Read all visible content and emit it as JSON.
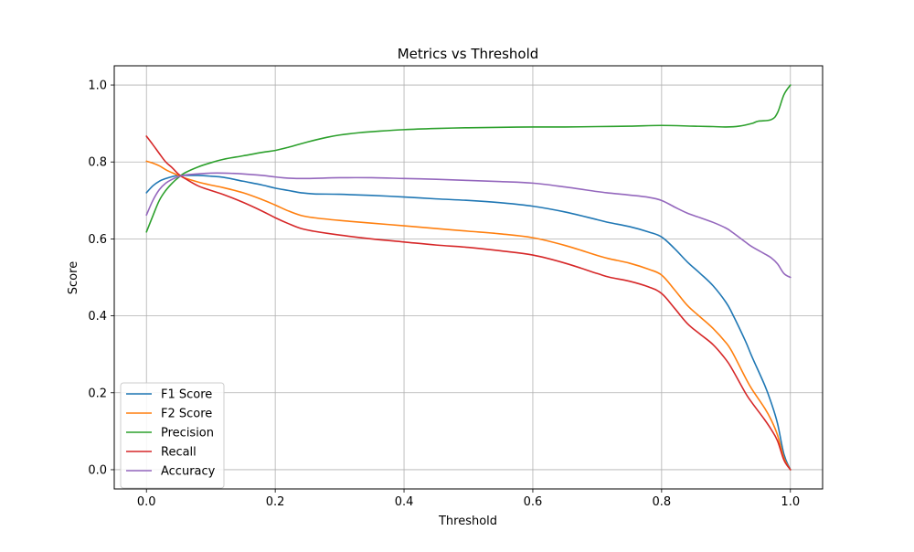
{
  "chart_data": {
    "type": "line",
    "title": "Metrics vs Threshold",
    "xlabel": "Threshold",
    "ylabel": "Score",
    "xlim": [
      -0.05,
      1.05
    ],
    "ylim": [
      -0.05,
      1.05
    ],
    "xticks": [
      0.0,
      0.2,
      0.4,
      0.6,
      0.8,
      1.0
    ],
    "yticks": [
      0.0,
      0.2,
      0.4,
      0.6,
      0.8,
      1.0
    ],
    "xtick_labels": [
      "0.0",
      "0.2",
      "0.4",
      "0.6",
      "0.8",
      "1.0"
    ],
    "ytick_labels": [
      "0.0",
      "0.2",
      "0.4",
      "0.6",
      "0.8",
      "1.0"
    ],
    "grid": true,
    "legend_position": "lower-left",
    "series": [
      {
        "name": "F1 Score",
        "color": "#1f77b4",
        "points": [
          [
            0.0,
            0.72
          ],
          [
            0.01,
            0.738
          ],
          [
            0.02,
            0.75
          ],
          [
            0.03,
            0.757
          ],
          [
            0.04,
            0.762
          ],
          [
            0.05,
            0.765
          ],
          [
            0.06,
            0.765
          ],
          [
            0.08,
            0.765
          ],
          [
            0.1,
            0.763
          ],
          [
            0.12,
            0.76
          ],
          [
            0.15,
            0.75
          ],
          [
            0.18,
            0.74
          ],
          [
            0.2,
            0.732
          ],
          [
            0.22,
            0.726
          ],
          [
            0.24,
            0.72
          ],
          [
            0.26,
            0.717
          ],
          [
            0.3,
            0.716
          ],
          [
            0.35,
            0.713
          ],
          [
            0.4,
            0.709
          ],
          [
            0.45,
            0.704
          ],
          [
            0.5,
            0.7
          ],
          [
            0.55,
            0.694
          ],
          [
            0.6,
            0.685
          ],
          [
            0.65,
            0.67
          ],
          [
            0.7,
            0.65
          ],
          [
            0.72,
            0.642
          ],
          [
            0.75,
            0.632
          ],
          [
            0.78,
            0.618
          ],
          [
            0.8,
            0.605
          ],
          [
            0.82,
            0.575
          ],
          [
            0.84,
            0.54
          ],
          [
            0.86,
            0.51
          ],
          [
            0.88,
            0.478
          ],
          [
            0.9,
            0.435
          ],
          [
            0.91,
            0.405
          ],
          [
            0.93,
            0.335
          ],
          [
            0.94,
            0.295
          ],
          [
            0.96,
            0.22
          ],
          [
            0.97,
            0.175
          ],
          [
            0.98,
            0.12
          ],
          [
            0.99,
            0.04
          ],
          [
            1.0,
            0.0
          ]
        ]
      },
      {
        "name": "F2 Score",
        "color": "#ff7f0e",
        "points": [
          [
            0.0,
            0.802
          ],
          [
            0.01,
            0.797
          ],
          [
            0.02,
            0.79
          ],
          [
            0.03,
            0.78
          ],
          [
            0.04,
            0.772
          ],
          [
            0.05,
            0.765
          ],
          [
            0.06,
            0.758
          ],
          [
            0.08,
            0.748
          ],
          [
            0.1,
            0.74
          ],
          [
            0.12,
            0.733
          ],
          [
            0.15,
            0.72
          ],
          [
            0.18,
            0.702
          ],
          [
            0.2,
            0.688
          ],
          [
            0.22,
            0.673
          ],
          [
            0.24,
            0.661
          ],
          [
            0.26,
            0.655
          ],
          [
            0.3,
            0.648
          ],
          [
            0.35,
            0.641
          ],
          [
            0.4,
            0.634
          ],
          [
            0.45,
            0.627
          ],
          [
            0.5,
            0.62
          ],
          [
            0.55,
            0.613
          ],
          [
            0.6,
            0.603
          ],
          [
            0.65,
            0.583
          ],
          [
            0.7,
            0.557
          ],
          [
            0.72,
            0.548
          ],
          [
            0.75,
            0.537
          ],
          [
            0.78,
            0.521
          ],
          [
            0.8,
            0.506
          ],
          [
            0.82,
            0.468
          ],
          [
            0.84,
            0.427
          ],
          [
            0.86,
            0.397
          ],
          [
            0.88,
            0.367
          ],
          [
            0.9,
            0.33
          ],
          [
            0.91,
            0.305
          ],
          [
            0.93,
            0.24
          ],
          [
            0.94,
            0.21
          ],
          [
            0.96,
            0.16
          ],
          [
            0.97,
            0.13
          ],
          [
            0.98,
            0.09
          ],
          [
            0.99,
            0.03
          ],
          [
            1.0,
            0.0
          ]
        ]
      },
      {
        "name": "Precision",
        "color": "#2ca02c",
        "points": [
          [
            0.0,
            0.618
          ],
          [
            0.01,
            0.66
          ],
          [
            0.02,
            0.7
          ],
          [
            0.03,
            0.726
          ],
          [
            0.04,
            0.745
          ],
          [
            0.05,
            0.76
          ],
          [
            0.06,
            0.772
          ],
          [
            0.08,
            0.787
          ],
          [
            0.1,
            0.798
          ],
          [
            0.12,
            0.807
          ],
          [
            0.15,
            0.816
          ],
          [
            0.18,
            0.825
          ],
          [
            0.2,
            0.83
          ],
          [
            0.22,
            0.838
          ],
          [
            0.25,
            0.852
          ],
          [
            0.28,
            0.864
          ],
          [
            0.3,
            0.87
          ],
          [
            0.33,
            0.876
          ],
          [
            0.36,
            0.88
          ],
          [
            0.4,
            0.884
          ],
          [
            0.45,
            0.887
          ],
          [
            0.5,
            0.889
          ],
          [
            0.55,
            0.89
          ],
          [
            0.6,
            0.891
          ],
          [
            0.65,
            0.891
          ],
          [
            0.7,
            0.892
          ],
          [
            0.75,
            0.893
          ],
          [
            0.8,
            0.895
          ],
          [
            0.85,
            0.893
          ],
          [
            0.88,
            0.892
          ],
          [
            0.9,
            0.891
          ],
          [
            0.92,
            0.893
          ],
          [
            0.94,
            0.9
          ],
          [
            0.95,
            0.906
          ],
          [
            0.97,
            0.91
          ],
          [
            0.98,
            0.928
          ],
          [
            0.99,
            0.975
          ],
          [
            1.0,
            1.0
          ]
        ]
      },
      {
        "name": "Recall",
        "color": "#d62728",
        "points": [
          [
            0.0,
            0.867
          ],
          [
            0.01,
            0.845
          ],
          [
            0.02,
            0.822
          ],
          [
            0.03,
            0.8
          ],
          [
            0.04,
            0.785
          ],
          [
            0.05,
            0.768
          ],
          [
            0.06,
            0.757
          ],
          [
            0.08,
            0.738
          ],
          [
            0.1,
            0.726
          ],
          [
            0.12,
            0.715
          ],
          [
            0.15,
            0.695
          ],
          [
            0.18,
            0.672
          ],
          [
            0.2,
            0.655
          ],
          [
            0.22,
            0.64
          ],
          [
            0.24,
            0.627
          ],
          [
            0.26,
            0.62
          ],
          [
            0.3,
            0.61
          ],
          [
            0.35,
            0.6
          ],
          [
            0.4,
            0.592
          ],
          [
            0.45,
            0.584
          ],
          [
            0.5,
            0.578
          ],
          [
            0.55,
            0.569
          ],
          [
            0.6,
            0.558
          ],
          [
            0.65,
            0.537
          ],
          [
            0.7,
            0.51
          ],
          [
            0.72,
            0.5
          ],
          [
            0.75,
            0.49
          ],
          [
            0.78,
            0.475
          ],
          [
            0.8,
            0.458
          ],
          [
            0.82,
            0.42
          ],
          [
            0.84,
            0.38
          ],
          [
            0.86,
            0.352
          ],
          [
            0.88,
            0.325
          ],
          [
            0.9,
            0.286
          ],
          [
            0.91,
            0.26
          ],
          [
            0.93,
            0.2
          ],
          [
            0.94,
            0.175
          ],
          [
            0.96,
            0.13
          ],
          [
            0.97,
            0.105
          ],
          [
            0.98,
            0.075
          ],
          [
            0.99,
            0.025
          ],
          [
            1.0,
            0.0
          ]
        ]
      },
      {
        "name": "Accuracy",
        "color": "#9467bd",
        "points": [
          [
            0.0,
            0.662
          ],
          [
            0.01,
            0.7
          ],
          [
            0.02,
            0.728
          ],
          [
            0.03,
            0.745
          ],
          [
            0.04,
            0.755
          ],
          [
            0.05,
            0.762
          ],
          [
            0.06,
            0.766
          ],
          [
            0.08,
            0.769
          ],
          [
            0.1,
            0.771
          ],
          [
            0.12,
            0.771
          ],
          [
            0.15,
            0.769
          ],
          [
            0.18,
            0.765
          ],
          [
            0.2,
            0.761
          ],
          [
            0.22,
            0.758
          ],
          [
            0.25,
            0.757
          ],
          [
            0.3,
            0.759
          ],
          [
            0.35,
            0.759
          ],
          [
            0.4,
            0.757
          ],
          [
            0.45,
            0.755
          ],
          [
            0.5,
            0.752
          ],
          [
            0.55,
            0.749
          ],
          [
            0.6,
            0.745
          ],
          [
            0.65,
            0.735
          ],
          [
            0.7,
            0.723
          ],
          [
            0.72,
            0.719
          ],
          [
            0.75,
            0.714
          ],
          [
            0.78,
            0.708
          ],
          [
            0.8,
            0.7
          ],
          [
            0.82,
            0.683
          ],
          [
            0.84,
            0.667
          ],
          [
            0.86,
            0.655
          ],
          [
            0.88,
            0.643
          ],
          [
            0.9,
            0.628
          ],
          [
            0.91,
            0.617
          ],
          [
            0.93,
            0.592
          ],
          [
            0.94,
            0.58
          ],
          [
            0.96,
            0.561
          ],
          [
            0.97,
            0.551
          ],
          [
            0.98,
            0.535
          ],
          [
            0.99,
            0.51
          ],
          [
            1.0,
            0.5
          ]
        ]
      }
    ]
  }
}
